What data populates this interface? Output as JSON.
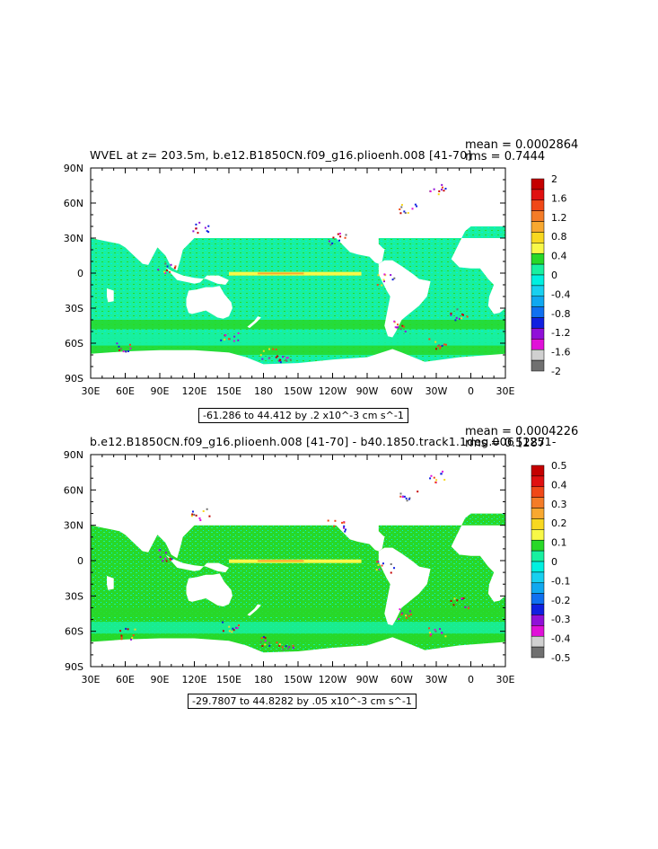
{
  "chart_data": [
    {
      "type": "heatmap",
      "title": "WVEL at z= 203.5m, b.e12.B1850CN.f09_g16.plioenh.008 [41-70]",
      "stats": {
        "mean": "mean = 0.0002864",
        "rms": "rms = 0.7444"
      },
      "range_label": "-61.286 to 44.412 by .2 x10^-3 cm s^-1",
      "x_tick_labels": [
        "30E",
        "60E",
        "90E",
        "120E",
        "150E",
        "180",
        "150W",
        "120W",
        "90W",
        "60W",
        "30W",
        "0",
        "30E"
      ],
      "y_tick_labels": [
        "90N",
        "60N",
        "30N",
        "0",
        "30S",
        "60S",
        "90S"
      ],
      "colorbar": {
        "labels": [
          "2",
          "1.6",
          "1.2",
          "0.8",
          "0.4",
          "0",
          "-0.4",
          "-0.8",
          "-1.2",
          "-1.6",
          "-2"
        ],
        "colors": [
          "#c40000",
          "#e01010",
          "#f04818",
          "#f47c28",
          "#f8a830",
          "#f8d820",
          "#f8f848",
          "#28d828",
          "#18f0a0",
          "#00f0e0",
          "#18d0f0",
          "#10a8f0",
          "#1070f0",
          "#1020e0",
          "#9010d8",
          "#e010d8",
          "#d0d0d0",
          "#707070"
        ]
      },
      "xlim": [
        30,
        390
      ],
      "ylim": [
        -90,
        90
      ]
    },
    {
      "type": "heatmap",
      "title": "b.e12.B1850CN.f09_g16.plioenh.008 [41-70] - b40.1850.track1.1deg.006 [1251-",
      "stats": {
        "mean": "mean = 0.0004226",
        "rms": "rms = 0.5287"
      },
      "range_label": "-29.7807 to 44.8282 by .05 x10^-3 cm s^-1",
      "x_tick_labels": [
        "30E",
        "60E",
        "90E",
        "120E",
        "150E",
        "180",
        "150W",
        "120W",
        "90W",
        "60W",
        "30W",
        "0",
        "30E"
      ],
      "y_tick_labels": [
        "90N",
        "60N",
        "30N",
        "0",
        "30S",
        "60S",
        "90S"
      ],
      "colorbar": {
        "labels": [
          "0.5",
          "0.4",
          "0.3",
          "0.2",
          "0.1",
          "0",
          "-0.1",
          "-0.2",
          "-0.3",
          "-0.4",
          "-0.5"
        ],
        "colors": [
          "#c40000",
          "#e01010",
          "#f04818",
          "#f47c28",
          "#f8a830",
          "#f8d820",
          "#f8f848",
          "#28d828",
          "#18f0a0",
          "#00f0e0",
          "#18d0f0",
          "#10a8f0",
          "#1070f0",
          "#1020e0",
          "#9010d8",
          "#e010d8",
          "#d0d0d0",
          "#707070"
        ]
      },
      "xlim": [
        30,
        390
      ],
      "ylim": [
        -90,
        90
      ]
    }
  ]
}
